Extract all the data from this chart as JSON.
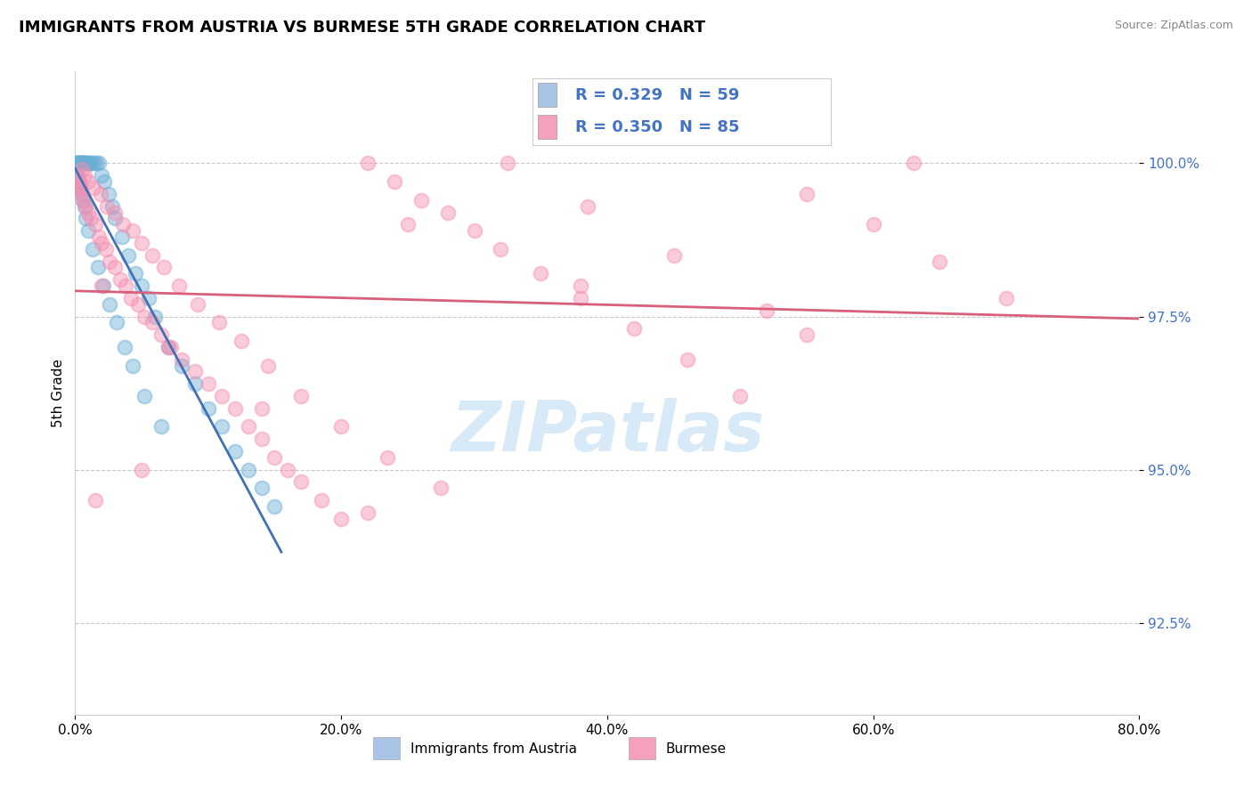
{
  "title": "IMMIGRANTS FROM AUSTRIA VS BURMESE 5TH GRADE CORRELATION CHART",
  "source_text": "Source: ZipAtlas.com",
  "ylabel": "5th Grade",
  "x_ticks": [
    "0.0%",
    "20.0%",
    "40.0%",
    "60.0%",
    "80.0%"
  ],
  "x_tick_vals": [
    0.0,
    20.0,
    40.0,
    60.0,
    80.0
  ],
  "y_tick_vals": [
    92.5,
    95.0,
    97.5,
    100.0
  ],
  "xlim": [
    0.0,
    80.0
  ],
  "ylim": [
    91.0,
    101.5
  ],
  "legend_entries": [
    {
      "label": "Immigrants from Austria",
      "color": "#aac4e8",
      "R": 0.329,
      "N": 59
    },
    {
      "label": "Burmese",
      "color": "#f4a0be",
      "R": 0.35,
      "N": 85
    }
  ],
  "austria_scatter_color": "#6aaed6",
  "burmese_scatter_color": "#f48fb1",
  "austria_line_color": "#4272b4",
  "burmese_line_color": "#d9607a",
  "watermark_text": "ZIPatlas",
  "watermark_color": "#d8eaf8",
  "background_color": "#ffffff",
  "grid_color": "#c8c8c8",
  "y_tick_color": "#4472c4",
  "title_fontsize": 13,
  "axis_label_fontsize": 11,
  "tick_fontsize": 11,
  "legend_text_color": "#4472c4",
  "austria_x": [
    0.1,
    0.15,
    0.2,
    0.25,
    0.3,
    0.35,
    0.4,
    0.45,
    0.5,
    0.55,
    0.6,
    0.65,
    0.7,
    0.8,
    0.9,
    1.0,
    1.1,
    1.2,
    1.4,
    1.6,
    1.8,
    2.0,
    2.2,
    2.5,
    2.8,
    3.0,
    3.5,
    4.0,
    4.5,
    5.0,
    5.5,
    6.0,
    7.0,
    8.0,
    9.0,
    10.0,
    11.0,
    12.0,
    13.0,
    14.0,
    15.0,
    0.1,
    0.2,
    0.3,
    0.4,
    0.5,
    0.6,
    0.7,
    0.8,
    1.0,
    1.3,
    1.7,
    2.1,
    2.6,
    3.1,
    3.7,
    4.3,
    5.2,
    6.5
  ],
  "austria_y": [
    100.0,
    100.0,
    100.0,
    100.0,
    100.0,
    100.0,
    100.0,
    100.0,
    100.0,
    100.0,
    100.0,
    100.0,
    100.0,
    100.0,
    100.0,
    100.0,
    100.0,
    100.0,
    100.0,
    100.0,
    100.0,
    99.8,
    99.7,
    99.5,
    99.3,
    99.1,
    98.8,
    98.5,
    98.2,
    98.0,
    97.8,
    97.5,
    97.0,
    96.7,
    96.4,
    96.0,
    95.7,
    95.3,
    95.0,
    94.7,
    94.4,
    99.9,
    99.8,
    99.7,
    99.6,
    99.5,
    99.4,
    99.3,
    99.1,
    98.9,
    98.6,
    98.3,
    98.0,
    97.7,
    97.4,
    97.0,
    96.7,
    96.2,
    95.7
  ],
  "burmese_x": [
    0.2,
    0.3,
    0.4,
    0.5,
    0.6,
    0.8,
    1.0,
    1.2,
    1.5,
    1.8,
    2.0,
    2.3,
    2.6,
    3.0,
    3.4,
    3.8,
    4.2,
    4.7,
    5.2,
    5.8,
    6.5,
    7.2,
    8.0,
    9.0,
    10.0,
    11.0,
    12.0,
    13.0,
    14.0,
    15.0,
    16.0,
    17.0,
    18.5,
    20.0,
    22.0,
    24.0,
    26.0,
    28.0,
    30.0,
    32.0,
    35.0,
    38.0,
    42.0,
    46.0,
    50.0,
    55.0,
    60.0,
    65.0,
    70.0,
    0.5,
    0.7,
    1.0,
    1.4,
    1.9,
    2.4,
    3.0,
    3.6,
    4.3,
    5.0,
    5.8,
    6.7,
    7.8,
    9.2,
    10.8,
    12.5,
    14.5,
    17.0,
    20.0,
    23.5,
    27.5,
    32.5,
    38.5,
    45.0,
    52.0,
    2.0,
    7.0,
    14.0,
    25.0,
    38.0,
    55.0,
    0.3,
    1.5,
    5.0,
    22.0,
    63.0
  ],
  "burmese_y": [
    99.8,
    99.7,
    99.6,
    99.5,
    99.4,
    99.3,
    99.2,
    99.1,
    99.0,
    98.8,
    98.7,
    98.6,
    98.4,
    98.3,
    98.1,
    98.0,
    97.8,
    97.7,
    97.5,
    97.4,
    97.2,
    97.0,
    96.8,
    96.6,
    96.4,
    96.2,
    96.0,
    95.7,
    95.5,
    95.2,
    95.0,
    94.8,
    94.5,
    94.2,
    100.0,
    99.7,
    99.4,
    99.2,
    98.9,
    98.6,
    98.2,
    97.8,
    97.3,
    96.8,
    96.2,
    99.5,
    99.0,
    98.4,
    97.8,
    99.9,
    99.8,
    99.7,
    99.6,
    99.5,
    99.3,
    99.2,
    99.0,
    98.9,
    98.7,
    98.5,
    98.3,
    98.0,
    97.7,
    97.4,
    97.1,
    96.7,
    96.2,
    95.7,
    95.2,
    94.7,
    100.0,
    99.3,
    98.5,
    97.6,
    98.0,
    97.0,
    96.0,
    99.0,
    98.0,
    97.2,
    99.6,
    94.5,
    95.0,
    94.3,
    100.0
  ]
}
